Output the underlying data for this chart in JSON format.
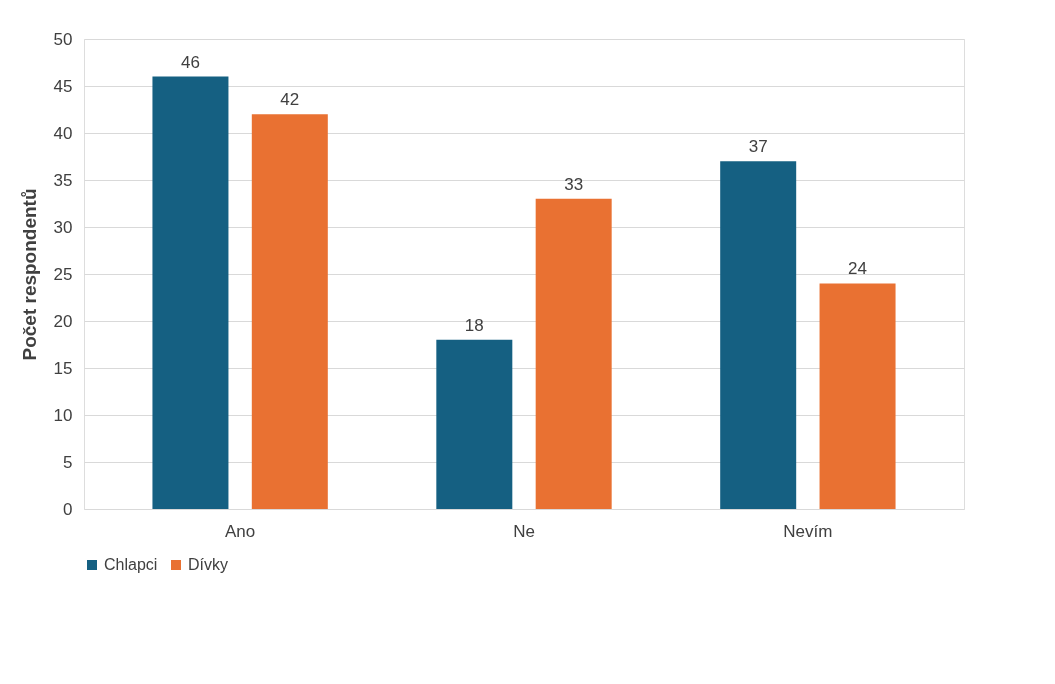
{
  "chart_data": {
    "type": "bar",
    "ylabel": "Počet respondentů",
    "categories": [
      "Ano",
      "Ne",
      "Nevím"
    ],
    "series": [
      {
        "name": "Chlapci",
        "color": "#156082",
        "values": [
          46,
          18,
          37
        ]
      },
      {
        "name": "Dívky",
        "color": "#e97132",
        "values": [
          42,
          33,
          24
        ]
      }
    ],
    "ylim": [
      0,
      50
    ],
    "yticks": [
      0,
      5,
      10,
      15,
      20,
      25,
      30,
      35,
      40,
      45,
      50
    ],
    "grid": "y",
    "legend": "bottom",
    "data_labels": true
  }
}
